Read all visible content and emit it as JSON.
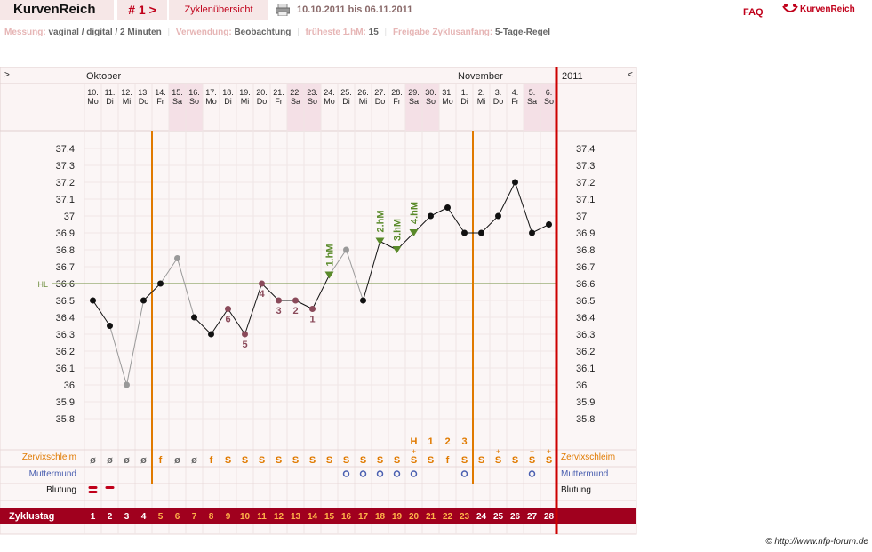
{
  "header": {
    "title": "KurvenReich",
    "cycle_number": "# 1 >",
    "overview_label": "Zyklenübersicht",
    "date_range": "10.10.2011 bis 06.11.2011",
    "faq_label": "FAQ",
    "logo_text": "KurvenReich"
  },
  "settings": [
    {
      "label": "Messung:",
      "value": "vaginal / digital / 2 Minuten"
    },
    {
      "label": "Verwendung:",
      "value": "Beobachtung"
    },
    {
      "label": "früheste 1.hM:",
      "value": "15"
    },
    {
      "label": "Freigabe Zyklusanfang:",
      "value": "5-Tage-Regel"
    }
  ],
  "copyright": "© http://www.nfp-forum.de",
  "colors": {
    "brand": "#c0001a",
    "band": "#a0001e",
    "orange": "#e07a00",
    "coverline": "#6f8f3f",
    "weekend": "#f4e0e6",
    "hm_marker": "#5a8a2a"
  },
  "chart_data": {
    "type": "line",
    "nav_prev": ">",
    "nav_next": "<",
    "months": [
      {
        "label": "Oktober",
        "day_index": 0
      },
      {
        "label": "November",
        "day_index": 22
      }
    ],
    "year_label": "2011",
    "days": [
      "10.",
      "11.",
      "12.",
      "13.",
      "14.",
      "15.",
      "16.",
      "17.",
      "18.",
      "19.",
      "20.",
      "21.",
      "22.",
      "23.",
      "24.",
      "25.",
      "26.",
      "27.",
      "28.",
      "29.",
      "30.",
      "31.",
      "1.",
      "2.",
      "3.",
      "4.",
      "5.",
      "6."
    ],
    "weekdays": [
      "Mo",
      "Di",
      "Mi",
      "Do",
      "Fr",
      "Sa",
      "So",
      "Mo",
      "Di",
      "Mi",
      "Do",
      "Fr",
      "Sa",
      "So",
      "Mo",
      "Di",
      "Mi",
      "Do",
      "Fr",
      "Sa",
      "So",
      "Mo",
      "Di",
      "Mi",
      "Do",
      "Fr",
      "Sa",
      "So"
    ],
    "weekend_indices": [
      5,
      6,
      12,
      13,
      19,
      20,
      26,
      27
    ],
    "y_ticks": [
      37.4,
      37.3,
      37.2,
      37.1,
      37,
      36.9,
      36.8,
      36.7,
      36.6,
      36.5,
      36.4,
      36.3,
      36.2,
      36.1,
      36,
      35.9,
      35.8
    ],
    "ylim": [
      35.75,
      37.45
    ],
    "coverline": {
      "label": "HL",
      "value": 36.6
    },
    "temperatures": [
      36.5,
      36.35,
      36.0,
      36.5,
      36.6,
      36.75,
      36.4,
      36.3,
      36.45,
      36.3,
      36.6,
      36.5,
      36.5,
      36.45,
      36.65,
      36.8,
      36.5,
      36.85,
      36.8,
      36.9,
      37.0,
      37.05,
      36.9,
      36.9,
      37.0,
      37.2,
      36.9,
      36.95
    ],
    "point_style": [
      "normal",
      "normal",
      "excluded",
      "normal",
      "normal",
      "excluded",
      "normal",
      "normal",
      "low",
      "low",
      "low",
      "low",
      "low",
      "low",
      "hm",
      "excluded",
      "normal",
      "hm",
      "hm",
      "hm",
      "normal",
      "normal",
      "normal",
      "normal",
      "normal",
      "normal",
      "normal",
      "normal"
    ],
    "low_labels": [
      {
        "day_index": 8,
        "text": "6",
        "position": "below"
      },
      {
        "day_index": 9,
        "text": "5",
        "position": "below"
      },
      {
        "day_index": 10,
        "text": "4",
        "position": "below"
      },
      {
        "day_index": 11,
        "text": "3",
        "position": "below"
      },
      {
        "day_index": 12,
        "text": "2",
        "position": "below"
      },
      {
        "day_index": 13,
        "text": "1",
        "position": "below"
      }
    ],
    "hm_labels": [
      {
        "day_index": 14,
        "text": "1.hM"
      },
      {
        "day_index": 17,
        "text": "2.hM"
      },
      {
        "day_index": 18,
        "text": "3.hM"
      },
      {
        "day_index": 19,
        "text": "4.hM"
      }
    ],
    "orange_lines_day_index": [
      3,
      22
    ],
    "cervix_label": "Zervixschleim",
    "cervix": [
      "ø",
      "ø",
      "ø",
      "ø",
      "f",
      "ø",
      "ø",
      "f",
      "S",
      "S",
      "S",
      "S",
      "S",
      "S",
      "S",
      "S",
      "S",
      "S",
      "S",
      "S+",
      "S",
      "f",
      "S",
      "S",
      "S+",
      "S",
      "S+",
      "S+"
    ],
    "cervix_peak_labels": [
      {
        "day_index": 19,
        "text": "H"
      },
      {
        "day_index": 20,
        "text": "1"
      },
      {
        "day_index": 21,
        "text": "2"
      },
      {
        "day_index": 22,
        "text": "3"
      }
    ],
    "mumu_label": "Muttermund",
    "mumu_indices": [
      15,
      16,
      17,
      18,
      19,
      22,
      26
    ],
    "bleeding_label": "Blutung",
    "bleeding_indices": [
      0,
      1
    ],
    "cycle_label": "Zyklustag",
    "cycle_days": [
      "1",
      "2",
      "3",
      "4",
      "5",
      "6",
      "7",
      "8",
      "9",
      "10",
      "11",
      "12",
      "13",
      "14",
      "15",
      "16",
      "17",
      "18",
      "19",
      "20",
      "21",
      "22",
      "23",
      "24",
      "25",
      "26",
      "27",
      "28"
    ],
    "cycle_orange_range": [
      4,
      22
    ]
  }
}
